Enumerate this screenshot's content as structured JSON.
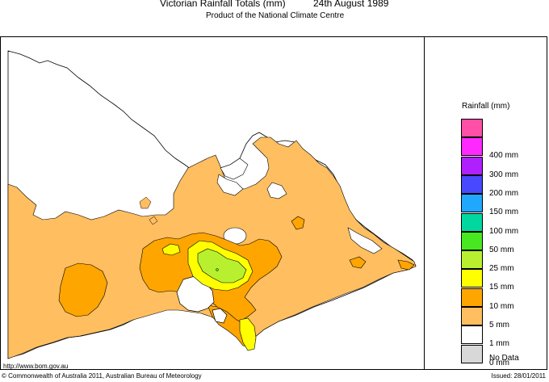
{
  "header": {
    "title": "Victorian Rainfall Totals (mm)",
    "date": "24th August 1989",
    "subtitle": "Product of the National Climate Centre"
  },
  "legend": {
    "title": "Rainfall (mm)",
    "items": [
      {
        "label": "",
        "color": "#ff4fa6"
      },
      {
        "label": "400 mm",
        "color": "#ff28ff"
      },
      {
        "label": "300 mm",
        "color": "#b020ff"
      },
      {
        "label": "200 mm",
        "color": "#4848ff"
      },
      {
        "label": "150 mm",
        "color": "#20a8ff"
      },
      {
        "label": "100 mm",
        "color": "#00d8a0"
      },
      {
        "label": "50 mm",
        "color": "#48e820"
      },
      {
        "label": "25 mm",
        "color": "#b8f030"
      },
      {
        "label": "15 mm",
        "color": "#ffff00"
      },
      {
        "label": "10 mm",
        "color": "#ffa500"
      },
      {
        "label": "5 mm",
        "color": "#ffbe60"
      },
      {
        "label": "1 mm",
        "color": "#ffffff"
      },
      {
        "label": "0 mm",
        "color": "#d8d8d8"
      }
    ],
    "no_data_label": "No Data"
  },
  "footer": {
    "website": "http://www.bom.gov.au",
    "copyright": "© Commonwealth of Australia 2011, Australian Bureau of Meteorology",
    "issued": "Issued: 28/01/2011"
  }
}
